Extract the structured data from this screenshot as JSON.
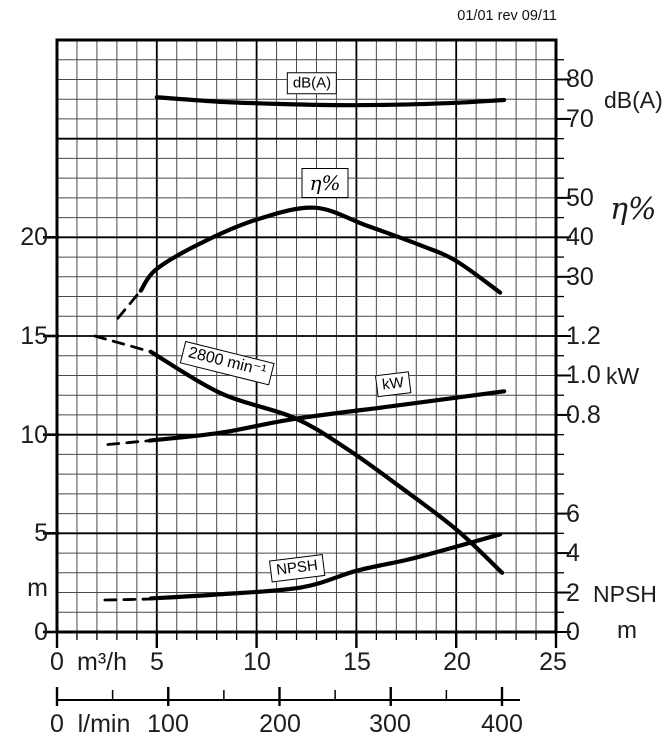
{
  "header": {
    "revision": "01/01 rev 09/11"
  },
  "chart_data": {
    "type": "line",
    "description": "Pump performance curves at 2800 min-1: head (m) vs flow, efficiency, power, noise and NPSH",
    "x_m3h": {
      "unit": "m³/h",
      "range": [
        0,
        25
      ],
      "minor_step": 1,
      "ticks": [
        0,
        5,
        10,
        15,
        20,
        25
      ],
      "tick_labels": [
        "0",
        "5",
        "10",
        "15",
        "20",
        "25"
      ]
    },
    "x_lmin": {
      "unit": "l/min",
      "range": [
        0,
        400
      ],
      "minor_step": 50,
      "ticks": [
        0,
        100,
        200,
        300,
        400
      ],
      "tick_labels": [
        "0",
        "100",
        "200",
        "300",
        "400"
      ]
    },
    "scales": {
      "m": {
        "side": "left",
        "unit": "m",
        "anchors": [
          [
            0,
            30
          ],
          [
            5,
            25
          ]
        ],
        "ticks": [
          20,
          15,
          10,
          5,
          0
        ],
        "tick_labels": [
          "20",
          "15",
          "10",
          "5",
          "0"
        ]
      },
      "dba": {
        "side": "right",
        "unit": "dB(A)",
        "anchors": [
          [
            80,
            2
          ],
          [
            70,
            4
          ]
        ],
        "ticks": [
          80,
          70
        ],
        "tick_labels": [
          "80",
          "70"
        ]
      },
      "eta": {
        "side": "right",
        "unit": "η%",
        "anchors": [
          [
            50,
            8
          ],
          [
            40,
            10
          ]
        ],
        "ticks": [
          50,
          40,
          30
        ],
        "tick_labels": [
          "50",
          "40",
          "30"
        ]
      },
      "kw": {
        "side": "right",
        "unit": "kW",
        "anchors": [
          [
            1.2,
            15
          ],
          [
            1,
            17
          ]
        ],
        "ticks": [
          1.2,
          1.0,
          0.8
        ],
        "tick_labels": [
          "1.2",
          "1.0",
          "0.8"
        ]
      },
      "npsh": {
        "side": "right",
        "unit": "NPSH",
        "unit2": "m",
        "anchors": [
          [
            0,
            30
          ],
          [
            2,
            28
          ]
        ],
        "ticks": [
          6,
          4,
          2,
          0
        ],
        "tick_labels": [
          "6",
          "4",
          "2",
          "0"
        ]
      }
    },
    "series": [
      {
        "id": "dba",
        "label": "dB(A)",
        "axis": "dba",
        "dashed": [],
        "solid": [
          [
            5,
            75.5
          ],
          [
            8,
            74.4
          ],
          [
            11,
            73.8
          ],
          [
            14,
            73.5
          ],
          [
            17,
            73.6
          ],
          [
            20,
            74.1
          ],
          [
            22.4,
            74.8
          ]
        ]
      },
      {
        "id": "eta",
        "label": "η%",
        "axis": "eta",
        "dashed": [
          [
            3.05,
            19.5
          ],
          [
            4.2,
            26.5
          ]
        ],
        "solid": [
          [
            4.2,
            26.5
          ],
          [
            5,
            32
          ],
          [
            7.2,
            38.5
          ],
          [
            10,
            44.5
          ],
          [
            12.9,
            47.5
          ],
          [
            15.5,
            43
          ],
          [
            18.2,
            38
          ],
          [
            20,
            34
          ],
          [
            22.2,
            26
          ]
        ]
      },
      {
        "id": "head",
        "label": "2800 min⁻¹",
        "axis": "m",
        "dashed": [
          [
            1.9,
            15
          ],
          [
            3.3,
            14.6
          ],
          [
            4.7,
            14.2
          ]
        ],
        "solid": [
          [
            4.7,
            14.2
          ],
          [
            8.2,
            12.1
          ],
          [
            11.9,
            10.85
          ],
          [
            14.5,
            9.3
          ],
          [
            17.2,
            7.35
          ],
          [
            20,
            5.2
          ],
          [
            22.3,
            3.0
          ]
        ]
      },
      {
        "id": "kw",
        "label": "kW",
        "axis": "kw",
        "dashed": [
          [
            2.55,
            0.65
          ],
          [
            4.65,
            0.67
          ]
        ],
        "solid": [
          [
            4.65,
            0.67
          ],
          [
            8.2,
            0.71
          ],
          [
            11.9,
            0.78
          ],
          [
            17.2,
            0.85
          ],
          [
            22.4,
            0.92
          ]
        ]
      },
      {
        "id": "npsh",
        "label": "NPSH",
        "axis": "npsh",
        "dashed": [
          [
            2.4,
            1.62
          ],
          [
            4.7,
            1.67
          ]
        ],
        "solid": [
          [
            4.7,
            1.7
          ],
          [
            8,
            1.9
          ],
          [
            12.2,
            2.25
          ],
          [
            15,
            3.1
          ],
          [
            17.5,
            3.65
          ],
          [
            19.2,
            4.1
          ],
          [
            22.2,
            4.95
          ]
        ]
      }
    ]
  }
}
